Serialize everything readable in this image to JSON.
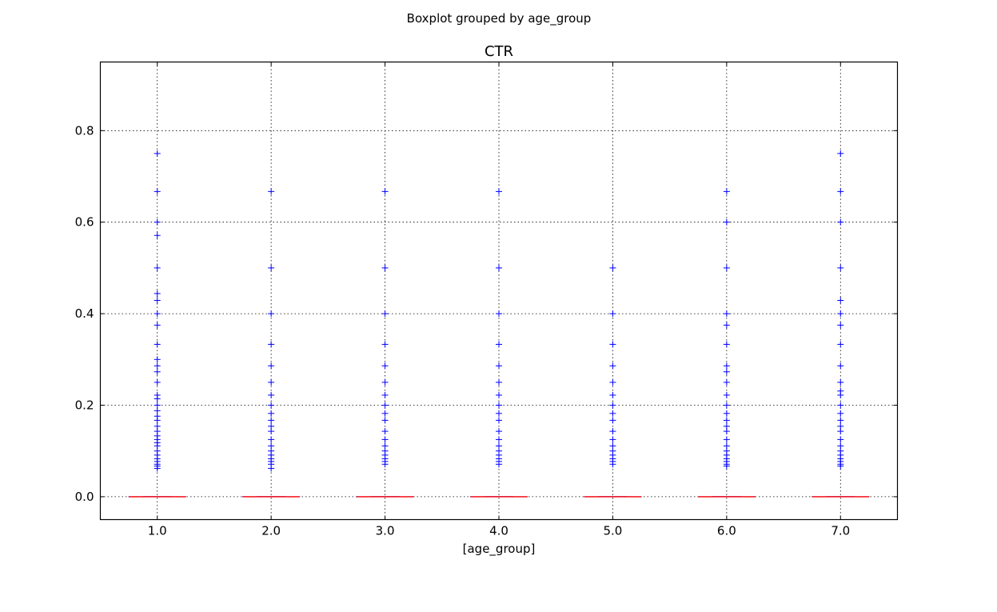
{
  "figure": {
    "suptitle": "Boxplot grouped by age_group"
  },
  "chart_data": {
    "type": "box",
    "title": "CTR",
    "xlabel": "[age_group]",
    "ylabel": "",
    "categories": [
      "1.0",
      "2.0",
      "3.0",
      "4.0",
      "5.0",
      "6.0",
      "7.0"
    ],
    "ylim": [
      -0.05,
      0.95
    ],
    "yticks": [
      0.0,
      0.2,
      0.4,
      0.6,
      0.8
    ],
    "ytick_labels": [
      "0.0",
      "0.2",
      "0.4",
      "0.6",
      "0.8"
    ],
    "grid": true,
    "box_stats": [
      {
        "q1": 0,
        "median": 0,
        "q3": 0,
        "whisker_low": 0,
        "whisker_high": 0
      },
      {
        "q1": 0,
        "median": 0,
        "q3": 0,
        "whisker_low": 0,
        "whisker_high": 0
      },
      {
        "q1": 0,
        "median": 0,
        "q3": 0,
        "whisker_low": 0,
        "whisker_high": 0
      },
      {
        "q1": 0,
        "median": 0,
        "q3": 0,
        "whisker_low": 0,
        "whisker_high": 0
      },
      {
        "q1": 0,
        "median": 0,
        "q3": 0,
        "whisker_low": 0,
        "whisker_high": 0
      },
      {
        "q1": 0,
        "median": 0,
        "q3": 0,
        "whisker_low": 0,
        "whisker_high": 0
      },
      {
        "q1": 0,
        "median": 0,
        "q3": 0,
        "whisker_low": 0,
        "whisker_high": 0
      }
    ],
    "fliers": [
      [
        0.75,
        0.667,
        0.6,
        0.571,
        0.5,
        0.444,
        0.429,
        0.4,
        0.375,
        0.333,
        0.3,
        0.286,
        0.273,
        0.25,
        0.222,
        0.214,
        0.2,
        0.188,
        0.176,
        0.167,
        0.154,
        0.143,
        0.133,
        0.125,
        0.118,
        0.111,
        0.1,
        0.091,
        0.083,
        0.077,
        0.071,
        0.067,
        0.062
      ],
      [
        0.667,
        0.5,
        0.4,
        0.333,
        0.286,
        0.25,
        0.222,
        0.2,
        0.182,
        0.167,
        0.154,
        0.143,
        0.125,
        0.111,
        0.1,
        0.091,
        0.083,
        0.077,
        0.071,
        0.062
      ],
      [
        0.667,
        0.5,
        0.4,
        0.333,
        0.286,
        0.25,
        0.222,
        0.2,
        0.182,
        0.167,
        0.143,
        0.125,
        0.111,
        0.1,
        0.091,
        0.083,
        0.077,
        0.071
      ],
      [
        0.667,
        0.5,
        0.4,
        0.333,
        0.286,
        0.25,
        0.222,
        0.2,
        0.182,
        0.167,
        0.143,
        0.125,
        0.111,
        0.1,
        0.091,
        0.083,
        0.077,
        0.071
      ],
      [
        0.5,
        0.4,
        0.333,
        0.286,
        0.25,
        0.222,
        0.2,
        0.182,
        0.167,
        0.143,
        0.125,
        0.111,
        0.1,
        0.091,
        0.083,
        0.077,
        0.071
      ],
      [
        0.667,
        0.6,
        0.5,
        0.4,
        0.375,
        0.333,
        0.286,
        0.273,
        0.25,
        0.222,
        0.2,
        0.182,
        0.167,
        0.154,
        0.143,
        0.125,
        0.111,
        0.1,
        0.091,
        0.083,
        0.077,
        0.071,
        0.067
      ],
      [
        0.75,
        0.667,
        0.6,
        0.5,
        0.429,
        0.4,
        0.375,
        0.333,
        0.286,
        0.25,
        0.231,
        0.222,
        0.2,
        0.182,
        0.167,
        0.154,
        0.143,
        0.125,
        0.111,
        0.1,
        0.091,
        0.083,
        0.077,
        0.071,
        0.067
      ]
    ],
    "colors": {
      "box": "#0000ff",
      "median": "#ff0000",
      "flier": "#0000ff"
    }
  }
}
